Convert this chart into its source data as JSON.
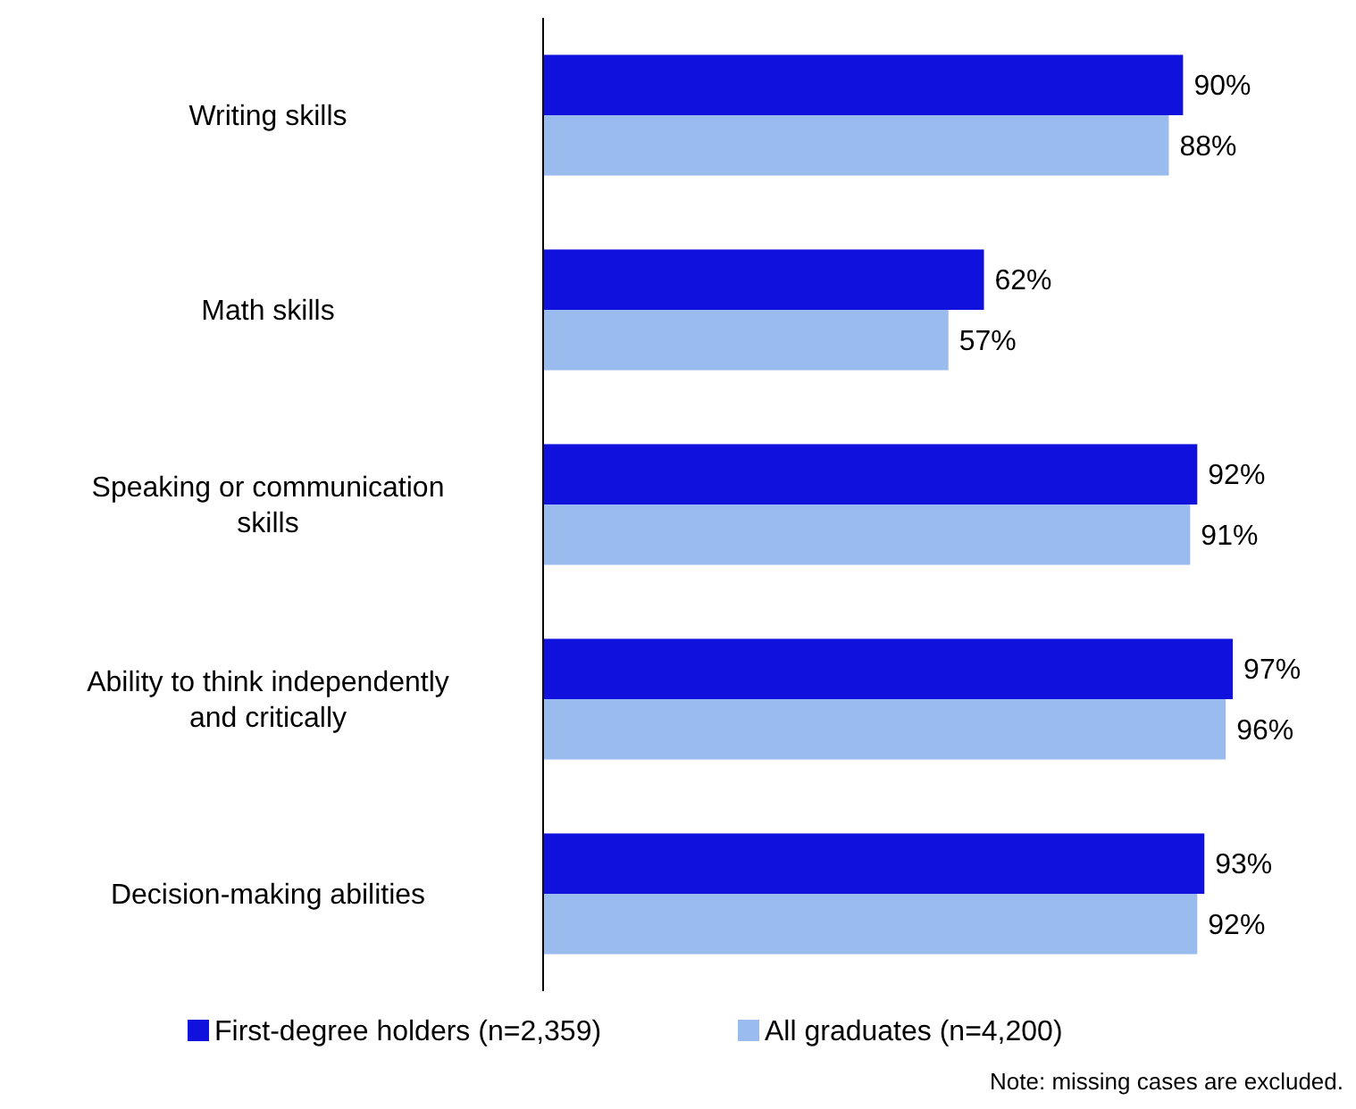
{
  "chart_data": {
    "type": "bar",
    "orientation": "horizontal",
    "categories": [
      "Writing skills",
      "Math skills",
      "Speaking or communication skills",
      "Ability to think independently and critically",
      "Decision-making abilities"
    ],
    "series": [
      {
        "name": "First-degree holders (n=2,359)",
        "color": "#1111dd",
        "values": [
          90,
          62,
          92,
          97,
          93
        ],
        "value_labels": [
          "90%",
          "62%",
          "92%",
          "97%",
          "93%"
        ]
      },
      {
        "name": "All graduates (n=4,200)",
        "color": "#99bbee",
        "values": [
          88,
          57,
          91,
          96,
          92
        ],
        "value_labels": [
          "88%",
          "57%",
          "91%",
          "96%",
          "92%"
        ]
      }
    ],
    "legend": "bottom",
    "annotations": [
      "Note: missing cases are excluded."
    ]
  }
}
